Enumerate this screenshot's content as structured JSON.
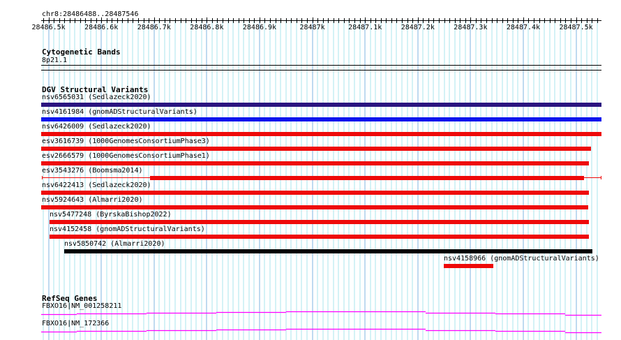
{
  "location": "chr8:28486488..28487546",
  "ruler": {
    "ticks": [
      "28486.5k",
      "28486.6k",
      "28486.7k",
      "28486.8k",
      "28486.9k",
      "28487k",
      "28487.1k",
      "28487.2k",
      "28487.3k",
      "28487.4k",
      "28487.5k"
    ]
  },
  "cyto": {
    "title": "Cytogenetic Bands",
    "band": "8p21.1"
  },
  "dgv": {
    "title": "DGV Structural Variants",
    "items": [
      {
        "label": "nsv6565031 (Sedlazeck2020)",
        "color": "#2a1580",
        "start": 59,
        "end": 862
      },
      {
        "label": "nsv4161984 (gnomADStructuralVariants)",
        "color": "#0a14ee",
        "start": 59,
        "end": 862
      },
      {
        "label": "nsv6426009 (Sedlazeck2020)",
        "color": "#ee0a0a",
        "start": 59,
        "end": 862
      },
      {
        "label": "esv3616739 (1000GenomesConsortiumPhase3)",
        "color": "#ee0a0a",
        "start": 59,
        "end": 847
      },
      {
        "label": "esv2666579 (1000GenomesConsortiumPhase1)",
        "color": "#ee0a0a",
        "start": 59,
        "end": 844
      },
      {
        "label": "esv3543276 (Boomsma2014)",
        "color": "#ee0a0a",
        "start": 215,
        "end": 837
      },
      {
        "label": "nsv6422413 (Sedlazeck2020)",
        "color": "#ee0a0a",
        "start": 59,
        "end": 844
      },
      {
        "label": "nsv5924643 (Almarri2020)",
        "color": "#ee0a0a",
        "start": 59,
        "end": 843
      },
      {
        "label": "nsv5477248 (ByrskaBishop2022)",
        "color": "#ee0a0a",
        "start": 71,
        "end": 844
      },
      {
        "label": "nsv4152458 (gnomADStructuralVariants)",
        "color": "#ee0a0a",
        "start": 71,
        "end": 844
      },
      {
        "label": "nsv5850742 (Almarri2020)",
        "color": "#000000",
        "start": 92,
        "end": 849
      },
      {
        "label": "nsv4158966 (gnomADStructuralVariants)",
        "color": "#ee0a0a",
        "start": 636,
        "end": 707
      }
    ]
  },
  "refseq": {
    "title": "RefSeq Genes",
    "genes": [
      "FBXO16|NM_001258211",
      "FBXO16|NM_172366"
    ],
    "color": "#ff00ff"
  }
}
